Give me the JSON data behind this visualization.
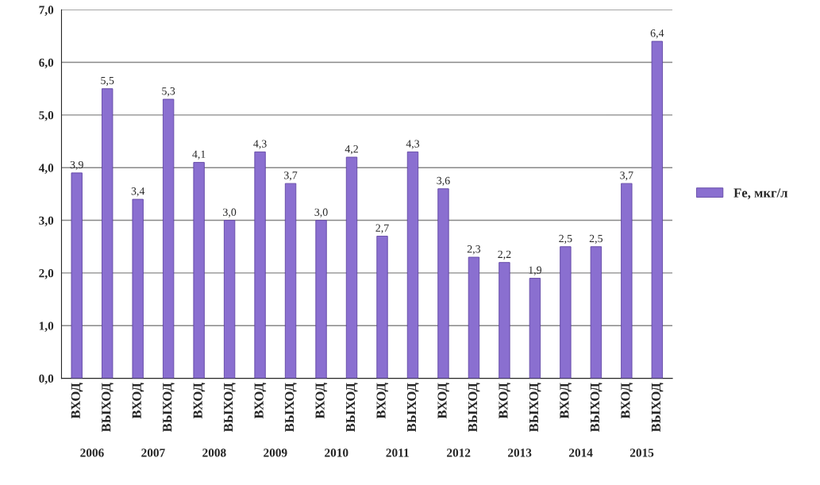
{
  "chart_data": {
    "type": "bar",
    "categories": [
      "ВХОД",
      "ВЫХОД",
      "ВХОД",
      "ВЫХОД",
      "ВХОД",
      "ВЫХОД",
      "ВХОД",
      "ВЫХОД",
      "ВХОД",
      "ВЫХОД",
      "ВХОД",
      "ВЫХОД",
      "ВХОД",
      "ВЫХОД",
      "ВХОД",
      "ВЫХОД",
      "ВХОД",
      "ВЫХОД",
      "ВХОД",
      "ВЫХОД"
    ],
    "series": [
      {
        "name": "Fe, мкг/л",
        "color": "#8a6fd0",
        "values": [
          3.9,
          5.5,
          3.4,
          5.3,
          4.1,
          3.0,
          4.3,
          3.7,
          3.0,
          4.2,
          2.7,
          4.3,
          3.6,
          2.3,
          2.2,
          1.9,
          2.5,
          2.5,
          3.7,
          6.4
        ],
        "value_labels": [
          "3,9",
          "5,5",
          "3,4",
          "5,3",
          "4,1",
          "3,0",
          "4,3",
          "3,7",
          "3,0",
          "4,2",
          "2,7",
          "4,3",
          "3,6",
          "2,3",
          "2,2",
          "1,9",
          "2,5",
          "2,5",
          "3,7",
          "6,4"
        ]
      }
    ],
    "annotations": [
      "2006",
      "2007",
      "2008",
      "2009",
      "2010",
      "2011",
      "2012",
      "2013",
      "2014",
      "2015"
    ],
    "ylim": [
      0,
      7
    ],
    "yticks": [
      {
        "value": 0,
        "label": "0,0"
      },
      {
        "value": 1,
        "label": "1,0"
      },
      {
        "value": 2,
        "label": "2,0"
      },
      {
        "value": 3,
        "label": "3,0"
      },
      {
        "value": 4,
        "label": "4,0"
      },
      {
        "value": 5,
        "label": "5,0"
      },
      {
        "value": 6,
        "label": "6,0"
      },
      {
        "value": 7,
        "label": "7,0"
      }
    ],
    "grid": "y",
    "legend": "right"
  }
}
